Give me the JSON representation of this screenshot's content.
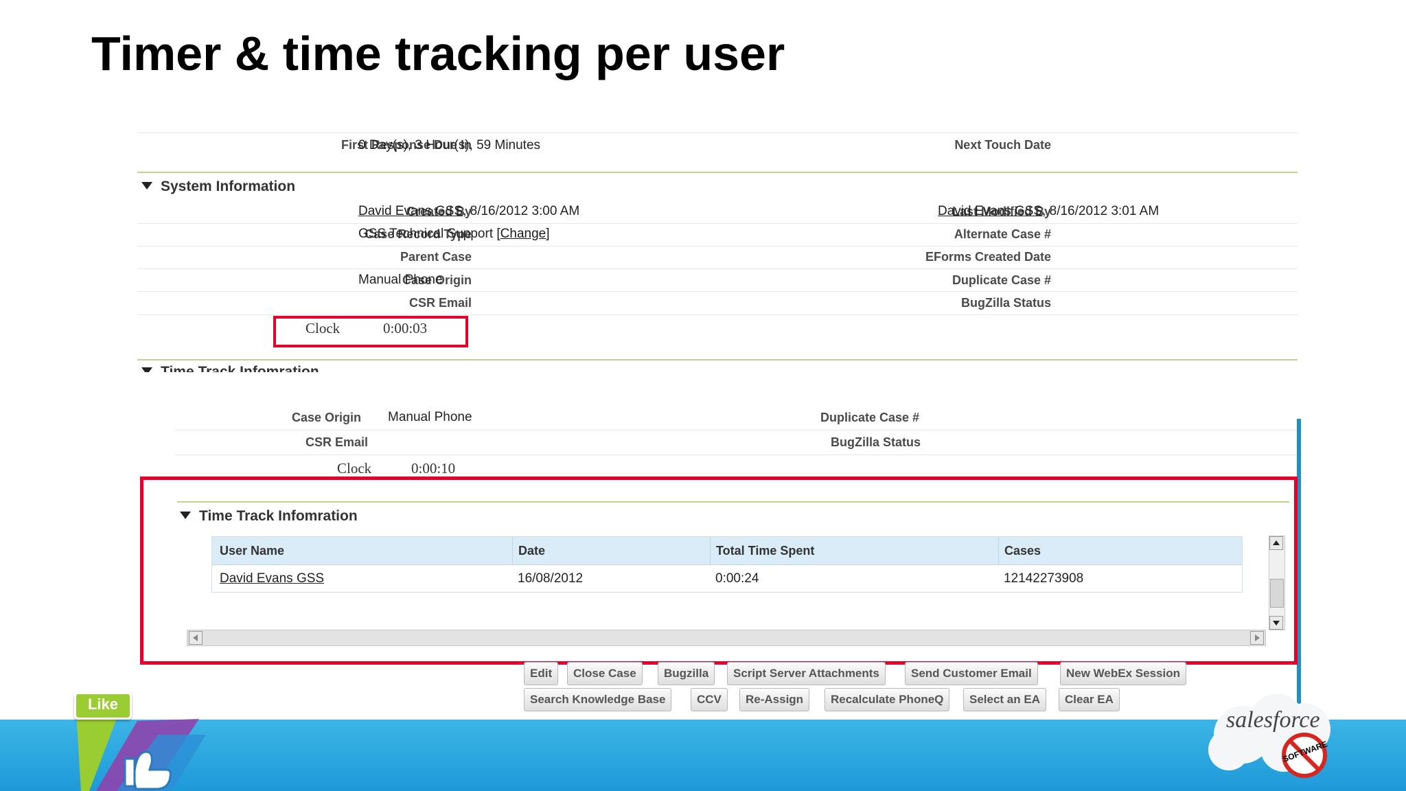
{
  "slide": {
    "title": "Timer & time tracking per user"
  },
  "top_panel": {
    "first_response": {
      "label": "First Response Due In",
      "value": "0 Day(s), 3 Hour(s), 59 Minutes"
    },
    "next_touch": {
      "label": "Next Touch Date"
    },
    "section_system": "System Information",
    "created_by": {
      "label": "Created By",
      "user": "David Evans GSS",
      "date": ", 8/16/2012 3:00 AM"
    },
    "last_modified_by": {
      "label": "Last Modified By",
      "user": "David Evans GSS",
      "date": ", 8/16/2012 3:01 AM"
    },
    "case_record_type": {
      "label": "Case Record Type",
      "value": "GSS Technical Support",
      "change": "[Change]"
    },
    "alternate_case": {
      "label": "Alternate Case #"
    },
    "parent_case": {
      "label": "Parent Case"
    },
    "eforms_created": {
      "label": "EForms Created Date"
    },
    "case_origin": {
      "label": "Case Origin",
      "value": "Manual Phone"
    },
    "duplicate_case": {
      "label": "Duplicate Case #"
    },
    "csr_email": {
      "label": "CSR Email"
    },
    "bugzilla": {
      "label": "BugZilla Status"
    },
    "clock": {
      "label": "Clock",
      "value": "0:00:03"
    },
    "section_time_track": "Time Track Infomration"
  },
  "bottom_panel": {
    "case_origin_partial": {
      "label": "Case Origin",
      "value": "Manual Phone"
    },
    "duplicate_partial": "Duplicate Case #",
    "csr_email": {
      "label": "CSR Email"
    },
    "bugzilla": {
      "label": "BugZilla Status"
    },
    "clock": {
      "label": "Clock",
      "value": "0:00:10"
    },
    "section_time_track": "Time Track Infomration",
    "table": {
      "headers": [
        "User Name",
        "Date",
        "Total Time Spent",
        "Cases"
      ],
      "rows": [
        {
          "user": "David Evans GSS",
          "date": "16/08/2012",
          "total": "0:00:24",
          "cases": "12142273908"
        }
      ]
    }
  },
  "buttons": {
    "row1": [
      "Edit",
      "Close Case",
      "Bugzilla",
      "Script Server Attachments",
      "Send Customer Email",
      "New WebEx Session"
    ],
    "row2": [
      "Search Knowledge Base",
      "CCV",
      "Re-Assign",
      "Recalculate PhoneQ",
      "Select an EA",
      "Clear EA"
    ]
  },
  "footer": {
    "like_badge": "Like",
    "brand": "salesforce",
    "badge": "SOFTWARE"
  },
  "colors": {
    "highlight": "#e4002b",
    "footer_blue": "#1e9ad8",
    "header_blue": "#d9ecf7",
    "olive_rule": "#c8cd94"
  }
}
